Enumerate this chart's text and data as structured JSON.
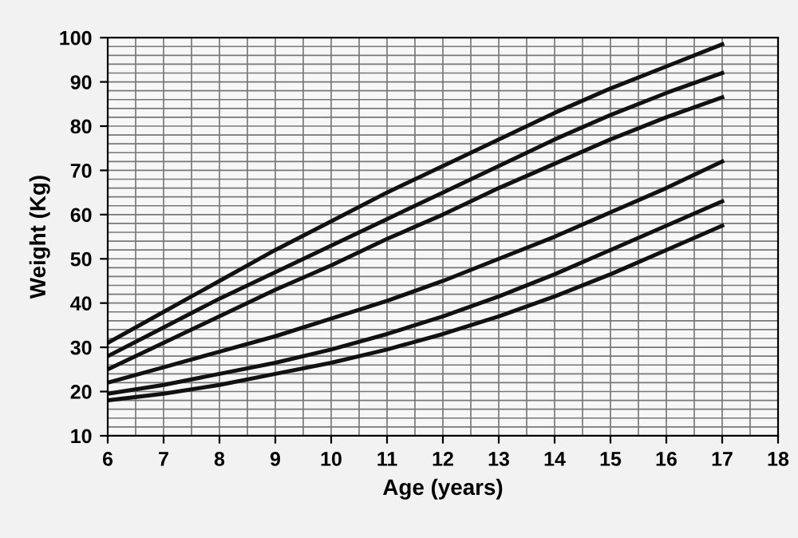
{
  "chart_data": {
    "type": "line",
    "xlabel": "Age (years)",
    "ylabel": "Weight (Kg)",
    "x": [
      6,
      7,
      8,
      9,
      10,
      11,
      12,
      13,
      14,
      15,
      16,
      17
    ],
    "series": [
      {
        "color": "#111111",
        "values": [
          31,
          38,
          45,
          52,
          58.5,
          65,
          71,
          77,
          83,
          88.5,
          93.5,
          98.5
        ]
      },
      {
        "color": "#111111",
        "values": [
          28,
          34.5,
          41,
          47,
          53,
          59,
          65,
          71,
          77,
          82.5,
          87.5,
          92
        ]
      },
      {
        "color": "#111111",
        "values": [
          25,
          31,
          37,
          43,
          48.5,
          54.5,
          60,
          66,
          71.5,
          77,
          82,
          86.5
        ]
      },
      {
        "color": "#111111",
        "values": [
          22,
          25.5,
          29,
          32.5,
          36.5,
          40.5,
          45,
          50,
          55,
          60.5,
          66,
          72
        ]
      },
      {
        "color": "#111111",
        "values": [
          19.5,
          21.5,
          24,
          26.5,
          29.5,
          33,
          37,
          41.5,
          46.5,
          52,
          57.5,
          63
        ]
      },
      {
        "color": "#111111",
        "values": [
          18,
          19.5,
          21.5,
          24,
          26.5,
          29.5,
          33,
          37,
          41.5,
          46.5,
          52,
          57.5
        ]
      }
    ],
    "xlim": [
      6,
      18
    ],
    "xticks": [
      6,
      7,
      8,
      9,
      10,
      11,
      12,
      13,
      14,
      15,
      16,
      17,
      18
    ],
    "ylim": [
      10,
      100
    ],
    "yticks": [
      10,
      20,
      30,
      40,
      50,
      60,
      70,
      80,
      90,
      100
    ],
    "grid": true,
    "legend": false,
    "marker": "none",
    "line_style": "solid"
  }
}
